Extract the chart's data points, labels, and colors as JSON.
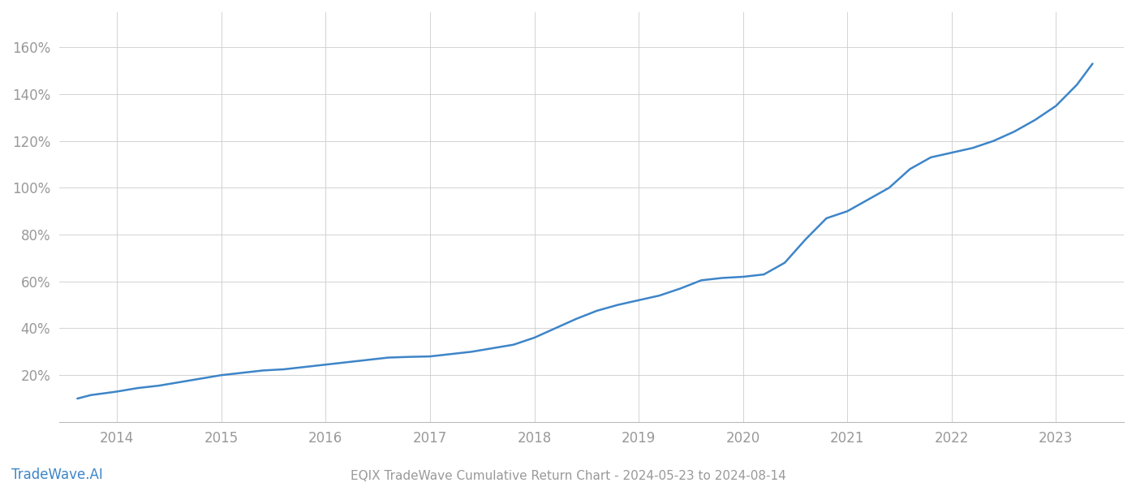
{
  "title": "EQIX TradeWave Cumulative Return Chart - 2024-05-23 to 2024-08-14",
  "watermark": "TradeWave.AI",
  "line_color": "#3d85c8",
  "background_color": "#ffffff",
  "grid_color": "#cccccc",
  "text_color": "#999999",
  "watermark_color": "#3d85c8",
  "x_values": [
    2013.62,
    2013.75,
    2013.92,
    2014.0,
    2014.2,
    2014.4,
    2014.6,
    2014.8,
    2015.0,
    2015.2,
    2015.4,
    2015.6,
    2015.8,
    2016.0,
    2016.2,
    2016.4,
    2016.6,
    2016.8,
    2017.0,
    2017.1,
    2017.2,
    2017.4,
    2017.6,
    2017.8,
    2018.0,
    2018.2,
    2018.4,
    2018.6,
    2018.8,
    2019.0,
    2019.2,
    2019.4,
    2019.6,
    2019.8,
    2020.0,
    2020.2,
    2020.4,
    2020.6,
    2020.8,
    2021.0,
    2021.2,
    2021.4,
    2021.6,
    2021.8,
    2022.0,
    2022.2,
    2022.4,
    2022.6,
    2022.8,
    2023.0,
    2023.2,
    2023.35
  ],
  "y_values": [
    10,
    11.5,
    12.5,
    13,
    14.5,
    15.5,
    17,
    18.5,
    20,
    21,
    22,
    22.5,
    23.5,
    24.5,
    25.5,
    26.5,
    27.5,
    27.8,
    28,
    28.5,
    29,
    30,
    31.5,
    33,
    36,
    40,
    44,
    47.5,
    50,
    52,
    54,
    57,
    60.5,
    61.5,
    62,
    63,
    68,
    78,
    87,
    90,
    95,
    100,
    108,
    113,
    115,
    117,
    120,
    124,
    129,
    135,
    144,
    153
  ],
  "xlim": [
    2013.45,
    2023.65
  ],
  "ylim": [
    0,
    175
  ],
  "yticks": [
    20,
    40,
    60,
    80,
    100,
    120,
    140,
    160
  ],
  "xticks": [
    2014,
    2015,
    2016,
    2017,
    2018,
    2019,
    2020,
    2021,
    2022,
    2023
  ],
  "line_width": 1.8,
  "title_fontsize": 11,
  "tick_fontsize": 12,
  "watermark_fontsize": 12
}
